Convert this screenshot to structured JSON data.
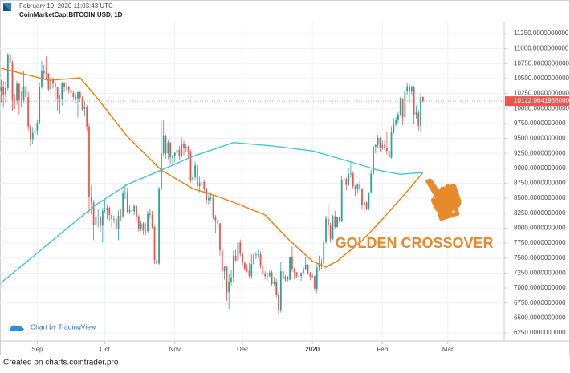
{
  "chart_data": {
    "type": "candlestick",
    "header": "February 19, 2020 11:03:43 UTC",
    "symbol": "CoinMarketCap:BITCOIN:USD, 1D",
    "branding": "Chart by TradingView",
    "footer": "Created on charts.cointrader.pro",
    "annotation": "GOLDEN CROSSOVER",
    "annotation_color": "#e8892b",
    "up_color": "#26a69a",
    "down_color": "#ef5350",
    "grid": true,
    "price_line": {
      "value": 10122.0641956,
      "label": "10122.0641956000",
      "color": "#ef5350"
    },
    "xlim": [
      -0.5,
      223
    ],
    "ylim": [
      6116,
      11437
    ],
    "xticks": [
      {
        "value": 16,
        "label": "Sep"
      },
      {
        "value": 46,
        "label": "Oct"
      },
      {
        "value": 77,
        "label": "Nov"
      },
      {
        "value": 107,
        "label": "Dec"
      },
      {
        "value": 138,
        "label": "2020"
      },
      {
        "value": 169,
        "label": "Feb"
      },
      {
        "value": 198,
        "label": "Mar"
      }
    ],
    "yticks": [
      {
        "value": 6250,
        "label": "6250.0000000000"
      },
      {
        "value": 6500,
        "label": "6500.0000000000"
      },
      {
        "value": 6750,
        "label": "6750.0000000000"
      },
      {
        "value": 7000,
        "label": "7000.0000000000"
      },
      {
        "value": 7250,
        "label": "7250.0000000000"
      },
      {
        "value": 7500,
        "label": "7500.0000000000"
      },
      {
        "value": 7750,
        "label": "7750.0000000000"
      },
      {
        "value": 8000,
        "label": "8000.0000000000"
      },
      {
        "value": 8250,
        "label": "8250.0000000000"
      },
      {
        "value": 8500,
        "label": "8500.0000000000"
      },
      {
        "value": 8750,
        "label": "8750.0000000000"
      },
      {
        "value": 9000,
        "label": "9000.0000000000"
      },
      {
        "value": 9250,
        "label": "9250.0000000000"
      },
      {
        "value": 9500,
        "label": "9500.0000000000"
      },
      {
        "value": 9750,
        "label": "9750.0000000000"
      },
      {
        "value": 10000,
        "label": "10000.0000000000"
      },
      {
        "value": 10250,
        "label": "10250.0000000000"
      },
      {
        "value": 10500,
        "label": "10500.0000000000"
      },
      {
        "value": 10750,
        "label": "10750.0000000000"
      },
      {
        "value": 11000,
        "label": "11000.0000000000"
      },
      {
        "value": 11250,
        "label": "11250.0000000000"
      }
    ],
    "x": [
      0,
      1,
      2,
      3,
      4,
      5,
      6,
      7,
      8,
      9,
      10,
      11,
      12,
      13,
      14,
      15,
      16,
      17,
      18,
      19,
      20,
      21,
      22,
      23,
      24,
      25,
      26,
      27,
      28,
      29,
      30,
      31,
      32,
      33,
      34,
      35,
      36,
      37,
      38,
      39,
      40,
      41,
      42,
      43,
      44,
      45,
      46,
      47,
      48,
      49,
      50,
      51,
      52,
      53,
      54,
      55,
      56,
      57,
      58,
      59,
      60,
      61,
      62,
      63,
      64,
      65,
      66,
      67,
      68,
      69,
      70,
      71,
      72,
      73,
      74,
      75,
      76,
      77,
      78,
      79,
      80,
      81,
      82,
      83,
      84,
      85,
      86,
      87,
      88,
      89,
      90,
      91,
      92,
      93,
      94,
      95,
      96,
      97,
      98,
      99,
      100,
      101,
      102,
      103,
      104,
      105,
      106,
      107,
      108,
      109,
      110,
      111,
      112,
      113,
      114,
      115,
      116,
      117,
      118,
      119,
      120,
      121,
      122,
      123,
      124,
      125,
      126,
      127,
      128,
      129,
      130,
      131,
      132,
      133,
      134,
      135,
      136,
      137,
      138,
      139,
      140,
      141,
      142,
      143,
      144,
      145,
      146,
      147,
      148,
      149,
      150,
      151,
      152,
      153,
      154,
      155,
      156,
      157,
      158,
      159,
      160,
      161,
      162,
      163,
      164,
      165,
      166,
      167,
      168,
      169,
      170,
      171,
      172,
      173,
      174,
      175,
      176,
      177,
      178,
      179,
      180,
      181,
      182,
      183,
      184,
      185,
      186,
      187
    ],
    "open": [
      10300,
      10360,
      10230,
      10340,
      10900,
      10750,
      10140,
      10130,
      10410,
      10140,
      10140,
      10370,
      10190,
      9700,
      9490,
      9590,
      9630,
      9760,
      10350,
      10620,
      10590,
      10580,
      10320,
      10480,
      10410,
      10350,
      10160,
      10160,
      10420,
      10360,
      10360,
      10310,
      10260,
      10190,
      10160,
      10270,
      10180,
      9990,
      10020,
      9700,
      8530,
      8430,
      8060,
      8180,
      8190,
      8040,
      8290,
      8300,
      8340,
      8220,
      8150,
      8150,
      7990,
      8210,
      8200,
      8590,
      8590,
      8270,
      8300,
      8280,
      8370,
      8200,
      7990,
      8080,
      7960,
      7950,
      8240,
      8220,
      8020,
      7470,
      7410,
      8660,
      9250,
      9550,
      9250,
      9430,
      9180,
      9200,
      9260,
      9310,
      9200,
      9410,
      9340,
      9360,
      9270,
      8800,
      8850,
      9050,
      8700,
      8760,
      8770,
      8650,
      8470,
      8500,
      8510,
      8190,
      8130,
      8080,
      7630,
      7280,
      7360,
      6930,
      7100,
      7180,
      7540,
      7460,
      7760,
      7570,
      7420,
      7320,
      7290,
      7200,
      7400,
      7550,
      7560,
      7560,
      7380,
      7240,
      7200,
      7200,
      7260,
      7070,
      7110,
      6880,
      6620,
      7280,
      7150,
      7190,
      7140,
      7510,
      7320,
      7260,
      7200,
      7200,
      7250,
      7320,
      7390,
      7250,
      7190,
      7200,
      6990,
      7340,
      7410,
      7410,
      7770,
      8160,
      8040,
      7820,
      8200,
      8020,
      8180,
      8110,
      8810,
      8820,
      8720,
      8900,
      8910,
      8700,
      8660,
      8740,
      8650,
      8380,
      8430,
      8330,
      8600,
      8910,
      9360,
      9390,
      9510,
      9350,
      9390,
      9340,
      9290,
      9180,
      9610,
      9730,
      9800,
      9900,
      10170,
      9850,
      10280,
      10370,
      10280,
      10360,
      9900,
      9930,
      9710,
      10190
    ],
    "high": [
      10480,
      10460,
      10450,
      10930,
      10950,
      10800,
      10240,
      10460,
      10430,
      10300,
      10620,
      10380,
      10280,
      9730,
      9690,
      9680,
      9820,
      10440,
      10790,
      10730,
      10870,
      10590,
      10500,
      10520,
      10470,
      10350,
      10230,
      10450,
      10440,
      10420,
      10380,
      10350,
      10290,
      10250,
      10280,
      10300,
      10200,
      10120,
      10060,
      9750,
      8720,
      8470,
      8290,
      8320,
      8210,
      8340,
      8500,
      8390,
      8360,
      8240,
      8210,
      8180,
      8300,
      8330,
      8630,
      8730,
      8680,
      8380,
      8360,
      8400,
      8380,
      8220,
      8130,
      8100,
      8090,
      8290,
      8320,
      8290,
      8040,
      7490,
      8690,
      9800,
      9800,
      9560,
      9480,
      9440,
      9230,
      9280,
      9380,
      9380,
      9510,
      9460,
      9410,
      9380,
      9310,
      8930,
      9110,
      9070,
      8860,
      8830,
      8800,
      8680,
      8560,
      8600,
      8560,
      8220,
      8170,
      8090,
      7660,
      7370,
      7370,
      7230,
      7310,
      7620,
      7640,
      7850,
      7810,
      7600,
      7440,
      7400,
      7420,
      7560,
      7590,
      7600,
      7640,
      7610,
      7420,
      7280,
      7260,
      7310,
      7290,
      7190,
      7150,
      6940,
      7430,
      7340,
      7220,
      7200,
      7520,
      7690,
      7340,
      7270,
      7280,
      7270,
      7360,
      7520,
      7400,
      7270,
      7250,
      7210,
      7400,
      7540,
      7490,
      7800,
      8210,
      8400,
      8090,
      8220,
      8290,
      8200,
      8200,
      8880,
      8890,
      8850,
      9000,
      9120,
      8950,
      8720,
      8750,
      8790,
      8670,
      8450,
      8450,
      8600,
      8970,
      9380,
      9410,
      9560,
      9520,
      9460,
      9470,
      9600,
      9350,
      9700,
      9840,
      9860,
      9940,
      10190,
      10170,
      10290,
      10420,
      10410,
      10380,
      10380,
      10050,
      9980,
      10250,
      10200
    ],
    "low": [
      10100,
      10010,
      10100,
      10300,
      10620,
      9950,
      9990,
      10060,
      9900,
      10010,
      10100,
      10060,
      9630,
      9370,
      9400,
      9510,
      9560,
      9740,
      10330,
      10480,
      10490,
      10290,
      10240,
      10330,
      10140,
      9950,
      9910,
      10050,
      10270,
      10300,
      10250,
      10070,
      10140,
      10080,
      9850,
      10110,
      9950,
      9880,
      9620,
      8240,
      8230,
      7800,
      7900,
      8010,
      7940,
      7760,
      8250,
      8150,
      8110,
      8010,
      8090,
      7910,
      7800,
      8110,
      8170,
      8490,
      8260,
      8230,
      8220,
      8220,
      8130,
      7940,
      7950,
      7890,
      7880,
      7920,
      8160,
      7990,
      7400,
      7360,
      7390,
      8640,
      9200,
      9160,
      9150,
      9070,
      9060,
      9100,
      9220,
      9140,
      9180,
      9220,
      9270,
      9160,
      8760,
      8730,
      8800,
      8670,
      8600,
      8700,
      8580,
      8410,
      8400,
      8460,
      8150,
      7910,
      8000,
      7540,
      7000,
      7140,
      6790,
      6650,
      7050,
      7110,
      7430,
      7430,
      7530,
      7360,
      7290,
      7260,
      7160,
      7150,
      7390,
      7480,
      7500,
      7330,
      7150,
      7150,
      7120,
      7180,
      7040,
      7030,
      6850,
      6560,
      6590,
      7050,
      7100,
      7100,
      7130,
      7270,
      7150,
      7160,
      7160,
      7120,
      7230,
      7300,
      7220,
      7130,
      7170,
      6950,
      6920,
      7280,
      7320,
      7400,
      7740,
      7880,
      7760,
      7800,
      7990,
      8010,
      8090,
      8100,
      8580,
      8630,
      8700,
      8850,
      8650,
      8540,
      8590,
      8590,
      8310,
      8250,
      8300,
      8300,
      8580,
      8890,
      9250,
      9340,
      9270,
      9310,
      9300,
      9230,
      9140,
      9160,
      9580,
      9700,
      9760,
      9870,
      9720,
      9750,
      10230,
      10100,
      10220,
      9740,
      9830,
      9630,
      9610,
      10090
    ],
    "close": [
      10360,
      10230,
      10340,
      10900,
      10750,
      10140,
      10130,
      10410,
      10140,
      10140,
      10370,
      10190,
      9700,
      9490,
      9590,
      9630,
      9760,
      10350,
      10620,
      10590,
      10580,
      10320,
      10480,
      10410,
      10350,
      10160,
      10160,
      10420,
      10360,
      10360,
      10310,
      10260,
      10190,
      10160,
      10270,
      10180,
      9990,
      10020,
      9700,
      8530,
      8430,
      8060,
      8180,
      8190,
      8040,
      8290,
      8300,
      8340,
      8220,
      8150,
      8150,
      7990,
      8210,
      8200,
      8590,
      8590,
      8270,
      8300,
      8280,
      8370,
      8200,
      7990,
      8080,
      7960,
      7950,
      8240,
      8220,
      8020,
      7470,
      7410,
      8660,
      9250,
      9550,
      9250,
      9430,
      9180,
      9200,
      9260,
      9310,
      9200,
      9410,
      9340,
      9360,
      9270,
      8800,
      8850,
      9050,
      8700,
      8760,
      8770,
      8650,
      8470,
      8500,
      8510,
      8190,
      8130,
      8080,
      7630,
      7280,
      7360,
      6930,
      7100,
      7180,
      7540,
      7460,
      7760,
      7570,
      7420,
      7320,
      7290,
      7200,
      7400,
      7550,
      7560,
      7560,
      7380,
      7240,
      7200,
      7200,
      7260,
      7070,
      7110,
      6880,
      6620,
      7280,
      7150,
      7190,
      7140,
      7510,
      7320,
      7260,
      7200,
      7200,
      7250,
      7320,
      7390,
      7250,
      7190,
      7200,
      6990,
      7340,
      7410,
      7410,
      7770,
      8160,
      8040,
      7820,
      8200,
      8020,
      8180,
      8110,
      8810,
      8820,
      8720,
      8900,
      8910,
      8700,
      8660,
      8740,
      8650,
      8380,
      8430,
      8330,
      8600,
      8910,
      9360,
      9390,
      9510,
      9350,
      9390,
      9340,
      9290,
      9180,
      9610,
      9730,
      9800,
      9900,
      10170,
      9850,
      10280,
      10370,
      10280,
      10360,
      9900,
      9930,
      9710,
      10190,
      10122.0641956
    ],
    "overlays": [
      {
        "color": "#f57c00",
        "x": [
          0,
          14,
          21,
          35,
          42,
          56,
          71,
          85,
          96,
          106,
          117,
          128,
          138,
          144,
          149,
          160,
          170,
          181,
          187
        ],
        "values": [
          10670,
          10540,
          10470,
          10510,
          10200,
          9530,
          8970,
          8660,
          8530,
          8390,
          8220,
          7790,
          7450,
          7350,
          7450,
          7790,
          8190,
          8660,
          8930
        ]
      },
      {
        "color": "#3ec6d6",
        "x": [
          0,
          14,
          28,
          42,
          56,
          71,
          85,
          103,
          121,
          138,
          153,
          167,
          177,
          187
        ],
        "values": [
          7090,
          7520,
          7960,
          8390,
          8730,
          8970,
          9200,
          9430,
          9370,
          9290,
          9130,
          8970,
          8900,
          8930
        ]
      }
    ]
  }
}
